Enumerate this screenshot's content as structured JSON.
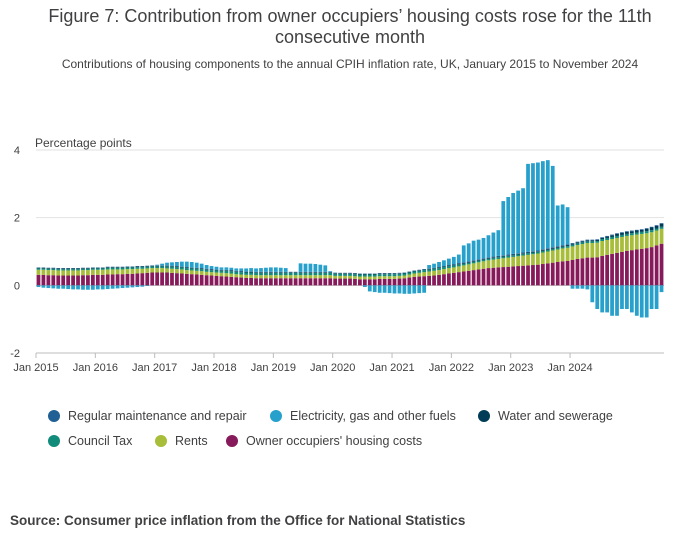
{
  "title": "Figure 7: Contribution from owner occupiers’ housing costs rose for the 11th consecutive month",
  "subtitle": "Contributions of housing components to the annual CPIH inflation rate, UK, January 2015 to November 2024",
  "source": "Source: Consumer price inflation from the Office for National Statistics",
  "colors": {
    "regular_maintenance": "#206095",
    "electricity_gas": "#27a0cc",
    "water_sewerage": "#003c57",
    "council_tax": "#118c7b",
    "rents": "#a8bd3a",
    "ooh": "#871a5b"
  },
  "chart_data": {
    "type": "bar",
    "stacked": true,
    "ylabel": "Percentage points",
    "ylim": [
      -2,
      4
    ],
    "y_ticks": [
      4,
      2,
      0,
      -2
    ],
    "grid": true,
    "legend_position": "bottom",
    "x_ticks": [
      "Jan 2015",
      "Jan 2016",
      "Jan 2017",
      "Jan 2018",
      "Jan 2019",
      "Jan 2020",
      "Jan 2021",
      "Jan 2022",
      "Jan 2023",
      "Jan 2024"
    ],
    "period": "January 2015 to November 2024",
    "series": [
      {
        "name": "Owner occupiers' housing costs",
        "key": "ooh",
        "values": [
          0.31,
          0.31,
          0.3,
          0.3,
          0.29,
          0.29,
          0.29,
          0.29,
          0.29,
          0.3,
          0.3,
          0.31,
          0.31,
          0.31,
          0.32,
          0.32,
          0.33,
          0.33,
          0.34,
          0.34,
          0.35,
          0.36,
          0.37,
          0.38,
          0.38,
          0.38,
          0.38,
          0.37,
          0.36,
          0.35,
          0.34,
          0.33,
          0.32,
          0.31,
          0.3,
          0.29,
          0.28,
          0.27,
          0.26,
          0.25,
          0.24,
          0.23,
          0.22,
          0.22,
          0.21,
          0.21,
          0.21,
          0.21,
          0.21,
          0.21,
          0.21,
          0.21,
          0.21,
          0.21,
          0.21,
          0.21,
          0.21,
          0.21,
          0.21,
          0.21,
          0.2,
          0.2,
          0.2,
          0.2,
          0.19,
          0.18,
          0.18,
          0.18,
          0.18,
          0.19,
          0.19,
          0.19,
          0.19,
          0.2,
          0.21,
          0.23,
          0.25,
          0.26,
          0.27,
          0.28,
          0.29,
          0.31,
          0.33,
          0.35,
          0.37,
          0.39,
          0.41,
          0.43,
          0.45,
          0.47,
          0.49,
          0.51,
          0.52,
          0.53,
          0.54,
          0.55,
          0.56,
          0.57,
          0.58,
          0.59,
          0.6,
          0.61,
          0.63,
          0.65,
          0.67,
          0.69,
          0.71,
          0.72,
          0.75,
          0.78,
          0.8,
          0.82,
          0.82,
          0.83,
          0.87,
          0.9,
          0.93,
          0.96,
          0.99,
          1.02,
          1.04,
          1.06,
          1.08,
          1.1,
          1.13,
          1.18,
          1.23
        ]
      },
      {
        "name": "Rents",
        "key": "rents",
        "values": [
          0.15,
          0.15,
          0.15,
          0.15,
          0.15,
          0.15,
          0.15,
          0.15,
          0.15,
          0.15,
          0.15,
          0.15,
          0.15,
          0.15,
          0.15,
          0.15,
          0.14,
          0.14,
          0.14,
          0.14,
          0.14,
          0.13,
          0.13,
          0.13,
          0.13,
          0.13,
          0.12,
          0.12,
          0.12,
          0.12,
          0.11,
          0.11,
          0.11,
          0.11,
          0.1,
          0.1,
          0.1,
          0.1,
          0.1,
          0.1,
          0.09,
          0.09,
          0.09,
          0.09,
          0.09,
          0.09,
          0.09,
          0.09,
          0.09,
          0.09,
          0.09,
          0.09,
          0.09,
          0.09,
          0.09,
          0.09,
          0.09,
          0.09,
          0.09,
          0.09,
          0.08,
          0.08,
          0.08,
          0.08,
          0.08,
          0.08,
          0.08,
          0.08,
          0.08,
          0.08,
          0.08,
          0.08,
          0.08,
          0.08,
          0.08,
          0.09,
          0.1,
          0.11,
          0.12,
          0.13,
          0.14,
          0.14,
          0.15,
          0.16,
          0.16,
          0.17,
          0.18,
          0.19,
          0.2,
          0.21,
          0.22,
          0.23,
          0.24,
          0.25,
          0.26,
          0.27,
          0.28,
          0.29,
          0.3,
          0.31,
          0.32,
          0.33,
          0.34,
          0.35,
          0.36,
          0.37,
          0.38,
          0.39,
          0.4,
          0.41,
          0.42,
          0.43,
          0.43,
          0.43,
          0.44,
          0.44,
          0.44,
          0.44,
          0.44,
          0.44,
          0.44,
          0.44,
          0.44,
          0.44,
          0.44,
          0.44,
          0.44
        ]
      },
      {
        "name": "Council Tax",
        "key": "council_tax",
        "values": [
          0.04,
          0.04,
          0.04,
          0.04,
          0.04,
          0.04,
          0.04,
          0.04,
          0.04,
          0.04,
          0.04,
          0.04,
          0.04,
          0.04,
          0.05,
          0.05,
          0.05,
          0.05,
          0.05,
          0.05,
          0.05,
          0.05,
          0.05,
          0.05,
          0.05,
          0.05,
          0.06,
          0.06,
          0.06,
          0.06,
          0.06,
          0.06,
          0.06,
          0.06,
          0.06,
          0.06,
          0.06,
          0.06,
          0.07,
          0.07,
          0.07,
          0.07,
          0.07,
          0.07,
          0.07,
          0.07,
          0.07,
          0.07,
          0.07,
          0.07,
          0.07,
          0.07,
          0.07,
          0.07,
          0.07,
          0.07,
          0.07,
          0.07,
          0.07,
          0.07,
          0.06,
          0.06,
          0.06,
          0.06,
          0.06,
          0.06,
          0.06,
          0.06,
          0.06,
          0.06,
          0.06,
          0.06,
          0.06,
          0.06,
          0.06,
          0.06,
          0.06,
          0.06,
          0.06,
          0.06,
          0.06,
          0.06,
          0.06,
          0.06,
          0.06,
          0.06,
          0.05,
          0.05,
          0.05,
          0.05,
          0.05,
          0.05,
          0.05,
          0.05,
          0.05,
          0.05,
          0.05,
          0.05,
          0.05,
          0.05,
          0.05,
          0.05,
          0.05,
          0.05,
          0.05,
          0.05,
          0.05,
          0.05,
          0.05,
          0.05,
          0.05,
          0.05,
          0.05,
          0.05,
          0.06,
          0.06,
          0.06,
          0.06,
          0.06,
          0.06,
          0.06,
          0.06,
          0.06,
          0.06,
          0.06,
          0.06,
          0.06
        ]
      },
      {
        "name": "Water and sewerage",
        "key": "water_sewerage",
        "values": [
          0.02,
          0.02,
          0.02,
          0.02,
          0.02,
          0.02,
          0.02,
          0.02,
          0.02,
          0.02,
          0.02,
          0.02,
          0.02,
          0.02,
          0.02,
          0.02,
          0.02,
          0.02,
          0.02,
          0.02,
          0.02,
          0.02,
          0.02,
          0.02,
          0.02,
          0.02,
          0.02,
          0.02,
          0.02,
          0.02,
          0.02,
          0.02,
          0.02,
          0.02,
          0.02,
          0.02,
          0.02,
          0.02,
          0.02,
          0.02,
          0.02,
          0.02,
          0.02,
          0.02,
          0.02,
          0.02,
          0.02,
          0.02,
          0.02,
          0.02,
          0.02,
          0.02,
          0.02,
          0.02,
          0.02,
          0.02,
          0.02,
          0.02,
          0.02,
          0.02,
          0.02,
          0.02,
          0.02,
          0.02,
          0.02,
          0.02,
          0.02,
          0.02,
          0.02,
          0.02,
          0.02,
          0.02,
          0.02,
          0.02,
          0.02,
          0.02,
          0.02,
          0.02,
          0.02,
          0.02,
          0.02,
          0.02,
          0.02,
          0.02,
          0.02,
          0.02,
          0.02,
          0.02,
          0.02,
          0.02,
          0.02,
          0.02,
          0.02,
          0.02,
          0.02,
          0.02,
          0.02,
          0.02,
          0.02,
          0.02,
          0.02,
          0.02,
          0.03,
          0.03,
          0.03,
          0.03,
          0.03,
          0.03,
          0.03,
          0.03,
          0.03,
          0.03,
          0.03,
          0.03,
          0.03,
          0.04,
          0.05,
          0.06,
          0.06,
          0.06,
          0.06,
          0.06,
          0.06,
          0.07,
          0.08,
          0.08,
          0.09
        ]
      },
      {
        "name": "Regular maintenance and repair",
        "key": "regular_maintenance",
        "values": [
          0.01,
          0.01,
          0.01,
          0.01,
          0.01,
          0.01,
          0.01,
          0.01,
          0.01,
          0.01,
          0.01,
          0.01,
          0.01,
          0.01,
          0.01,
          0.01,
          0.01,
          0.01,
          0.01,
          0.01,
          0.01,
          0.01,
          0.01,
          0.01,
          0.01,
          0.01,
          0.01,
          0.01,
          0.01,
          0.01,
          0.01,
          0.01,
          0.01,
          0.01,
          0.01,
          0.01,
          0.01,
          0.01,
          0.01,
          0.01,
          0.01,
          0.01,
          0.01,
          0.01,
          0.01,
          0.01,
          0.01,
          0.01,
          0.01,
          0.01,
          0.01,
          0.01,
          0.01,
          0.01,
          0.01,
          0.01,
          0.01,
          0.01,
          0.01,
          0.01,
          0.01,
          0.01,
          0.01,
          0.01,
          0.01,
          0.01,
          0.01,
          0.01,
          0.01,
          0.01,
          0.01,
          0.01,
          0.01,
          0.01,
          0.01,
          0.01,
          0.01,
          0.01,
          0.01,
          0.01,
          0.01,
          0.01,
          0.01,
          0.01,
          0.02,
          0.02,
          0.02,
          0.02,
          0.02,
          0.02,
          0.02,
          0.02,
          0.02,
          0.02,
          0.02,
          0.02,
          0.02,
          0.02,
          0.02,
          0.02,
          0.02,
          0.02,
          0.02,
          0.02,
          0.02,
          0.02,
          0.02,
          0.02,
          0.02,
          0.02,
          0.02,
          0.02,
          0.02,
          0.02,
          0.02,
          0.02,
          0.02,
          0.02,
          0.02,
          0.02,
          0.02,
          0.02,
          0.02,
          0.02,
          0.02,
          0.02,
          0.02
        ]
      },
      {
        "name": "Electricity, gas and other fuels",
        "key": "electricity_gas",
        "values": [
          -0.05,
          -0.07,
          -0.08,
          -0.09,
          -0.1,
          -0.1,
          -0.11,
          -0.12,
          -0.12,
          -0.13,
          -0.13,
          -0.13,
          -0.12,
          -0.12,
          -0.11,
          -0.1,
          -0.09,
          -0.08,
          -0.07,
          -0.06,
          -0.05,
          -0.04,
          -0.02,
          0.0,
          0.02,
          0.05,
          0.08,
          0.1,
          0.12,
          0.14,
          0.16,
          0.16,
          0.15,
          0.13,
          0.11,
          0.09,
          0.08,
          0.07,
          0.07,
          0.07,
          0.07,
          0.08,
          0.09,
          0.1,
          0.1,
          0.11,
          0.12,
          0.13,
          0.13,
          0.12,
          0.11,
          0.0,
          0.0,
          0.25,
          0.24,
          0.24,
          0.23,
          0.21,
          0.19,
          0.02,
          0.01,
          0.0,
          0.0,
          0.0,
          0.0,
          0.0,
          -0.05,
          -0.18,
          -0.2,
          -0.22,
          -0.22,
          -0.23,
          -0.24,
          -0.24,
          -0.25,
          -0.25,
          -0.24,
          -0.23,
          -0.22,
          0.1,
          0.12,
          0.15,
          0.17,
          0.19,
          0.21,
          0.25,
          0.5,
          0.53,
          0.58,
          0.58,
          0.6,
          0.65,
          0.71,
          0.76,
          1.6,
          1.7,
          1.8,
          1.85,
          1.9,
          2.6,
          2.6,
          2.6,
          2.6,
          2.6,
          2.4,
          1.2,
          1.2,
          1.1,
          -0.1,
          -0.1,
          -0.1,
          -0.12,
          -0.5,
          -0.7,
          -0.8,
          -0.8,
          -0.9,
          -0.9,
          -0.7,
          -0.7,
          -0.8,
          -0.9,
          -0.95,
          -0.95,
          -0.7,
          -0.7,
          -0.2,
          -0.2
        ]
      }
    ]
  },
  "legend": [
    {
      "label": "Regular maintenance and repair",
      "key": "regular_maintenance"
    },
    {
      "label": "Electricity, gas and other fuels",
      "key": "electricity_gas"
    },
    {
      "label": "Water and sewerage",
      "key": "water_sewerage"
    },
    {
      "label": "Council Tax",
      "key": "council_tax"
    },
    {
      "label": "Rents",
      "key": "rents"
    },
    {
      "label": "Owner occupiers' housing costs",
      "key": "ooh"
    }
  ]
}
